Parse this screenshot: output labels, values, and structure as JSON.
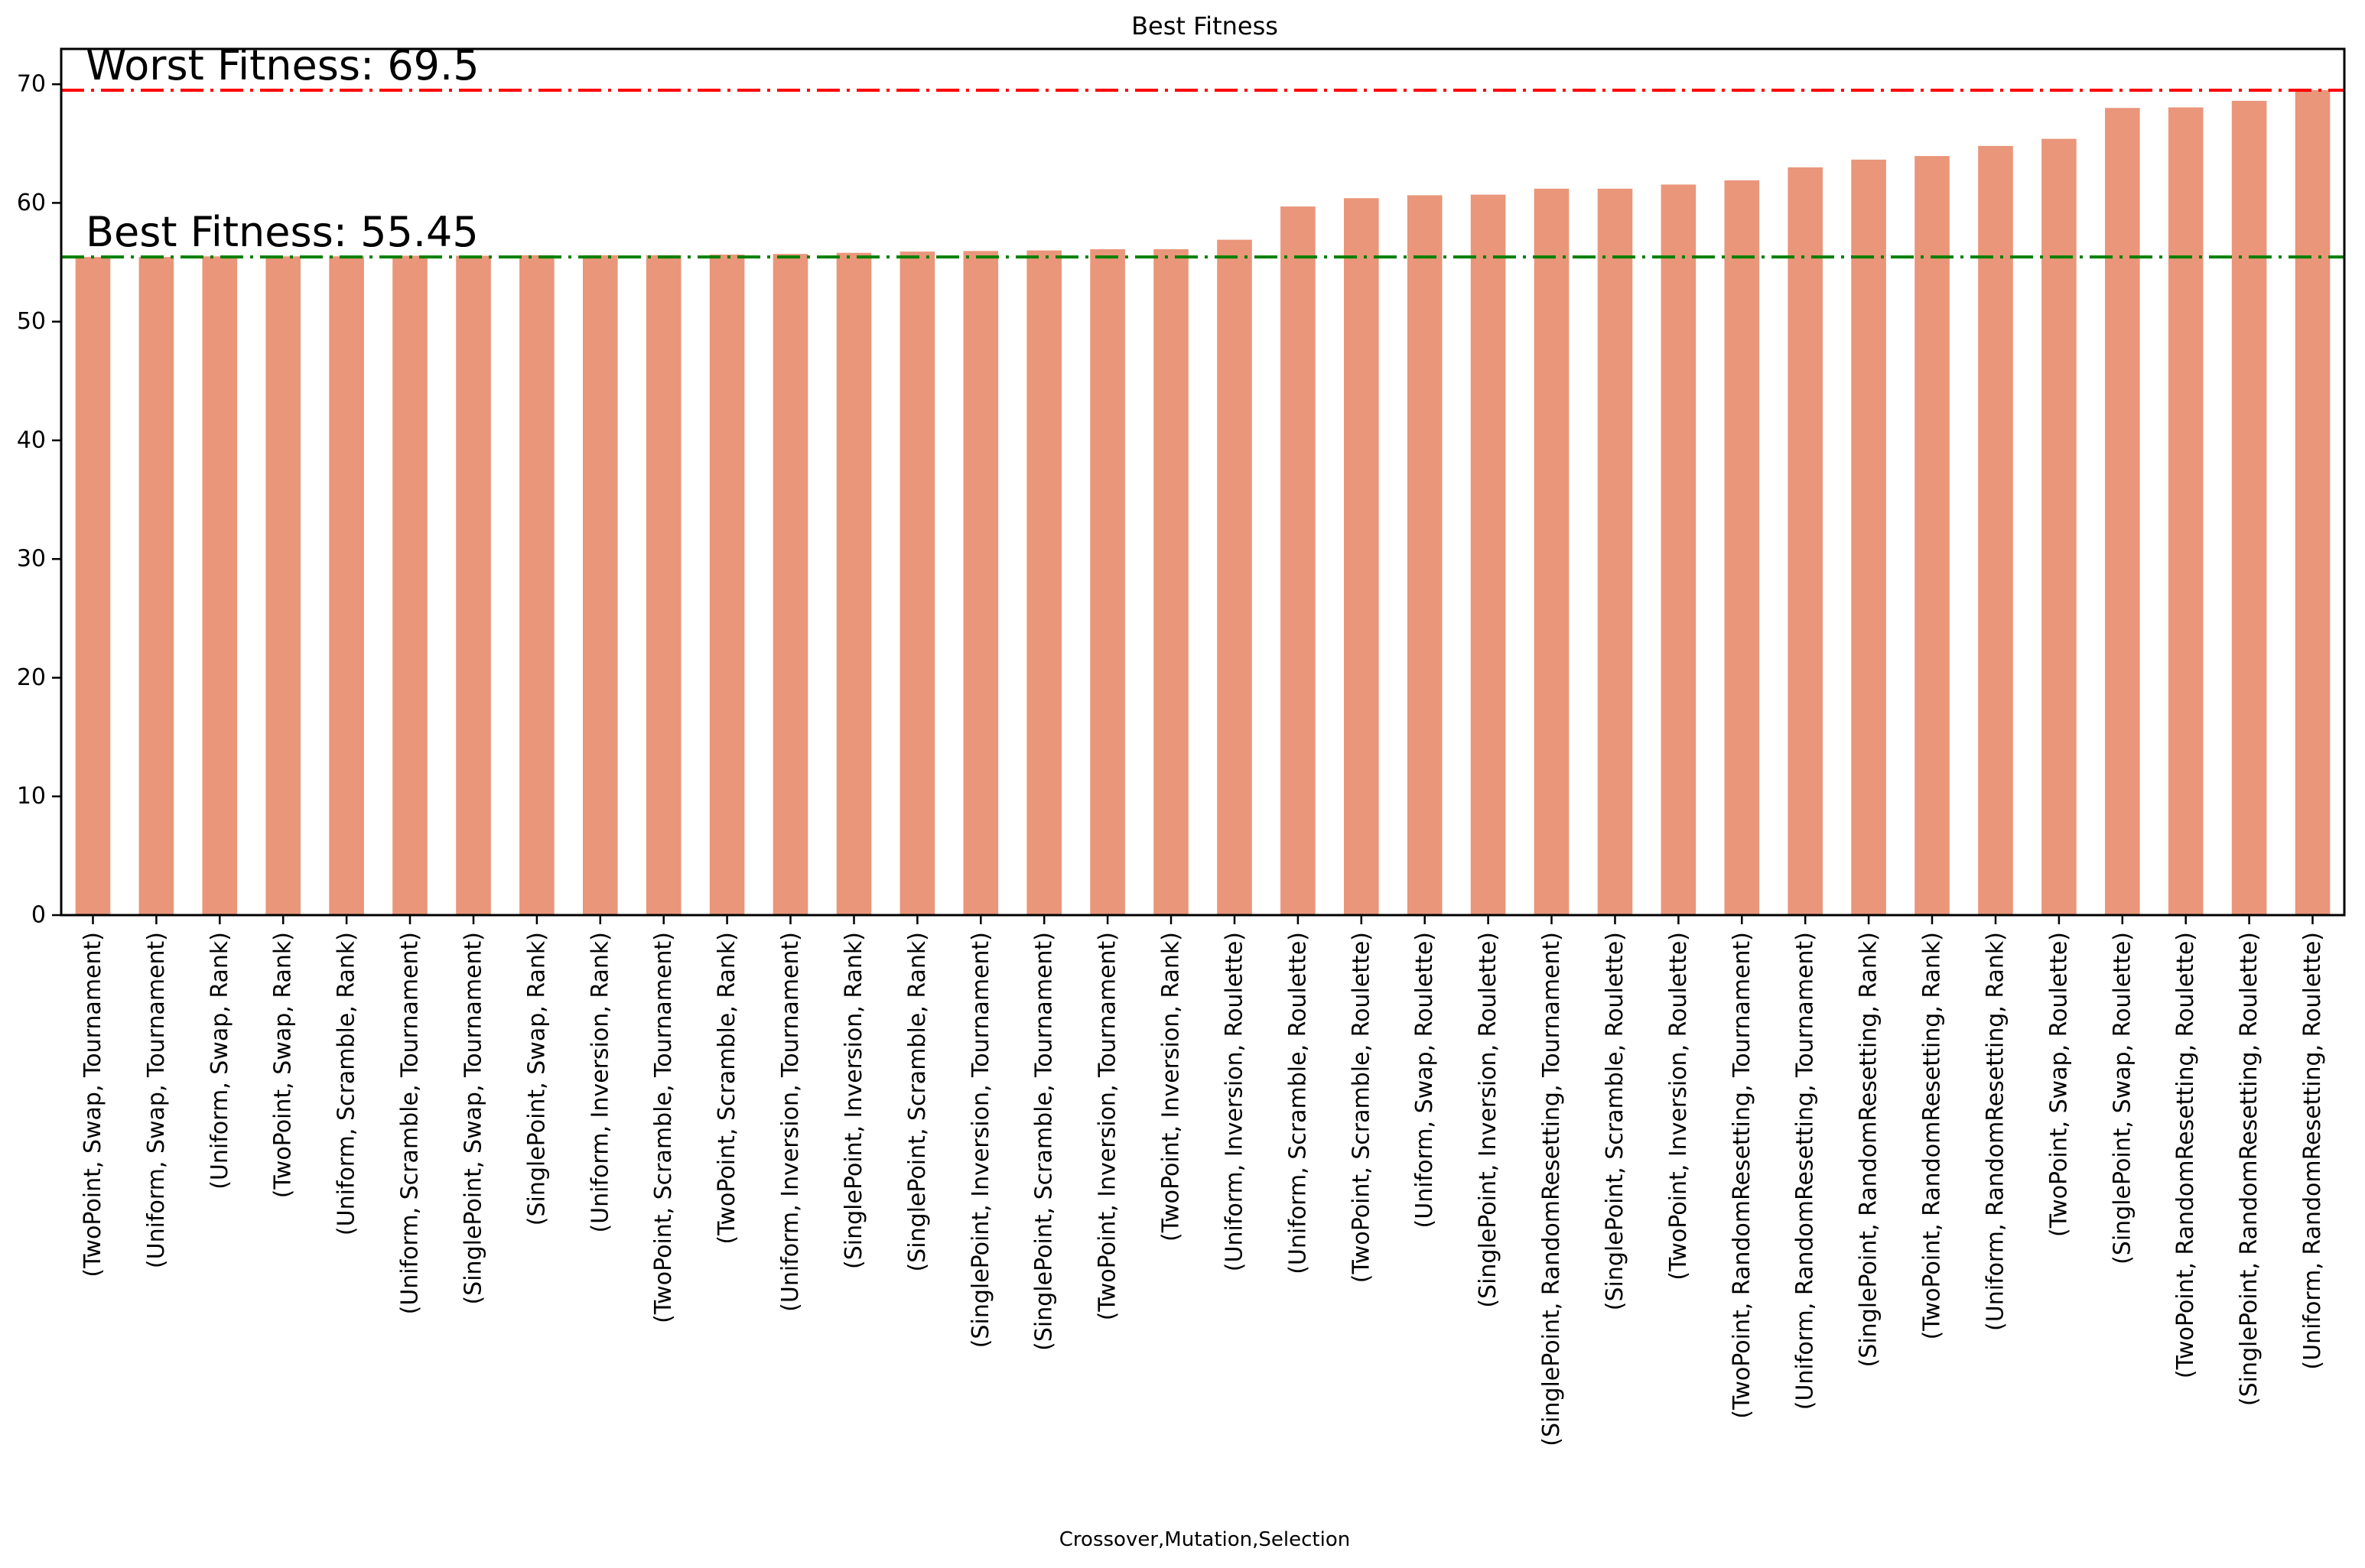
{
  "figure": {
    "background": "#ffffff"
  },
  "chart_data": {
    "type": "bar",
    "title": "Best Fitness",
    "xlabel": "Crossover,Mutation,Selection",
    "ylabel": "",
    "grid": false,
    "legend_position": "none",
    "bar_color": "#e9967a",
    "axis_color": "#000000",
    "ylim": [
      0,
      72.975
    ],
    "yticks": [
      0,
      10,
      20,
      30,
      40,
      50,
      60,
      70
    ],
    "categories": [
      "(TwoPoint, Swap, Tournament)",
      "(Uniform, Swap, Tournament)",
      "(Uniform, Swap, Rank)",
      "(TwoPoint, Swap, Rank)",
      "(Uniform, Scramble, Rank)",
      "(Uniform, Scramble, Tournament)",
      "(SinglePoint, Swap, Tournament)",
      "(SinglePoint, Swap, Rank)",
      "(Uniform, Inversion, Rank)",
      "(TwoPoint, Scramble, Tournament)",
      "(TwoPoint, Scramble, Rank)",
      "(Uniform, Inversion, Tournament)",
      "(SinglePoint, Inversion, Rank)",
      "(SinglePoint, Scramble, Rank)",
      "(SinglePoint, Inversion, Tournament)",
      "(SinglePoint, Scramble, Tournament)",
      "(TwoPoint, Inversion, Tournament)",
      "(TwoPoint, Inversion, Rank)",
      "(Uniform, Inversion, Roulette)",
      "(Uniform, Scramble, Roulette)",
      "(TwoPoint, Scramble, Roulette)",
      "(Uniform, Swap, Roulette)",
      "(SinglePoint, Inversion, Roulette)",
      "(SinglePoint, RandomResetting, Tournament)",
      "(SinglePoint, Scramble, Roulette)",
      "(TwoPoint, Inversion, Roulette)",
      "(TwoPoint, RandomResetting, Tournament)",
      "(Uniform, RandomResetting, Tournament)",
      "(SinglePoint, RandomResetting, Rank)",
      "(TwoPoint, RandomResetting, Rank)",
      "(Uniform, RandomResetting, Rank)",
      "(TwoPoint, Swap, Roulette)",
      "(SinglePoint, Swap, Roulette)",
      "(TwoPoint, RandomResetting, Roulette)",
      "(SinglePoint, RandomResetting, Roulette)",
      "(Uniform, RandomResetting, Roulette)"
    ],
    "values": [
      55.45,
      55.45,
      55.5,
      55.5,
      55.5,
      55.55,
      55.55,
      55.6,
      55.6,
      55.6,
      55.65,
      55.7,
      55.8,
      55.9,
      55.95,
      56.0,
      56.1,
      56.1,
      56.9,
      59.7,
      60.4,
      60.65,
      60.7,
      61.2,
      61.2,
      61.55,
      61.9,
      63.0,
      63.65,
      63.95,
      64.8,
      65.4,
      68.0,
      68.05,
      68.6,
      69.5
    ],
    "annotations": [
      {
        "id": "worst",
        "label": "Worst Fitness: 69.5",
        "value": 69.5,
        "color": "#ff0000",
        "linestyle": "dashdot"
      },
      {
        "id": "best",
        "label": "Best Fitness: 55.45",
        "value": 55.45,
        "color": "#008000",
        "linestyle": "dashdot"
      }
    ]
  }
}
